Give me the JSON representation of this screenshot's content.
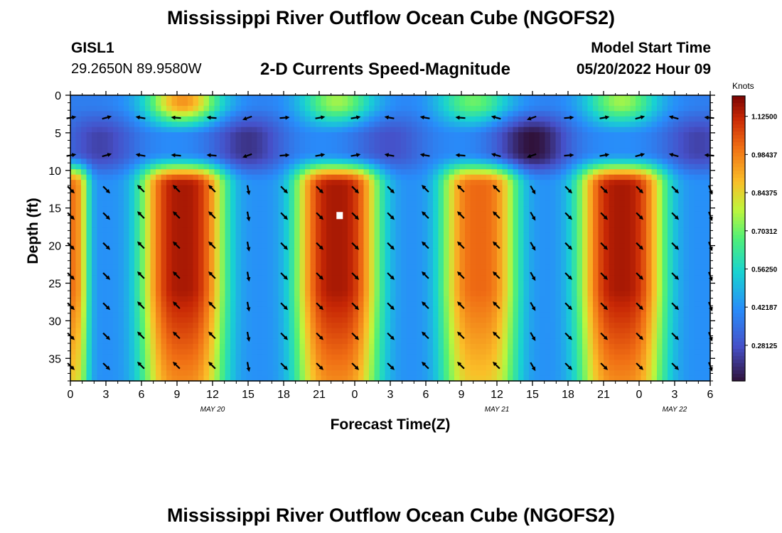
{
  "page": {
    "title": "Mississippi River Outflow Ocean Cube (NGOFS2)",
    "station_id": "GISL1",
    "station_coords": "29.2650N  89.9580W",
    "subtitle": "2-D Currents Speed-Magnitude",
    "model_start_label": "Model Start Time",
    "model_start_value": "05/20/2022 Hour 09",
    "bottom_title": "Mississippi River Outflow Ocean Cube (NGOFS2)"
  },
  "chart_data": {
    "type": "heatmap",
    "title": "2-D Currents Speed-Magnitude",
    "xlabel": "Forecast Time(Z)",
    "ylabel": "Depth (ft)",
    "x_hours_range": [
      0,
      54
    ],
    "x_tick_hours": [
      0,
      3,
      6,
      9,
      12,
      15,
      18,
      21,
      24,
      27,
      30,
      33,
      36,
      39,
      42,
      45,
      48,
      51,
      54
    ],
    "x_tick_labels": [
      "0",
      "3",
      "6",
      "9",
      "12",
      "15",
      "18",
      "21",
      "0",
      "3",
      "6",
      "9",
      "12",
      "15",
      "18",
      "21",
      "0",
      "3",
      "6"
    ],
    "date_labels": [
      {
        "text": "MAY 20",
        "hour": 12
      },
      {
        "text": "MAY 21",
        "hour": 36
      },
      {
        "text": "MAY 22",
        "hour": 51
      }
    ],
    "ylim": [
      0,
      38
    ],
    "y_ticks": [
      0,
      5,
      10,
      15,
      20,
      25,
      30,
      35
    ],
    "y_tick_labels": [
      "0",
      "5",
      "10",
      "15",
      "20",
      "25",
      "30",
      "35"
    ],
    "colorbar": {
      "label": "Knots",
      "range": [
        0.15,
        1.2
      ],
      "ticks": [
        1.125,
        0.984375,
        0.84375,
        0.703125,
        0.5625,
        0.421875,
        0.28125
      ],
      "tick_labels": [
        "1.12500",
        "0.98437",
        "0.84375",
        "0.70312",
        "0.56250",
        "0.42187",
        "0.28125"
      ]
    },
    "deep_speed_peaks": [
      {
        "hour": 0,
        "speed": 1.0,
        "width": 1.5
      },
      {
        "hour": 9.5,
        "speed": 1.15,
        "width": 3.5
      },
      {
        "hour": 22.5,
        "speed": 1.15,
        "width": 3.5
      },
      {
        "hour": 34.5,
        "speed": 1.02,
        "width": 3.2
      },
      {
        "hour": 46.5,
        "speed": 1.15,
        "width": 3.6
      }
    ],
    "surface_speed_peaks": [
      {
        "hour": 9.5,
        "speed": 0.95,
        "width": 2.2
      },
      {
        "hour": 22.5,
        "speed": 0.75,
        "width": 2.2
      },
      {
        "hour": 34,
        "speed": 0.7,
        "width": 2.2
      },
      {
        "hour": 46.5,
        "speed": 0.75,
        "width": 2.2
      }
    ],
    "mid_layer_speed_troughs": [
      {
        "hour": 2.5,
        "speed": 0.25
      },
      {
        "hour": 15,
        "speed": 0.22
      },
      {
        "hour": 27,
        "speed": 0.28
      },
      {
        "hour": 39,
        "speed": 0.15
      },
      {
        "hour": 53,
        "speed": 0.25
      }
    ],
    "vector_rows_depth_ft": [
      3,
      8,
      12.5,
      16,
      20,
      24,
      28,
      32,
      36
    ],
    "vector_column_hours": [
      0,
      3,
      6,
      9,
      12,
      15,
      18,
      21,
      24,
      27,
      30,
      33,
      36,
      39,
      42,
      45,
      48,
      51,
      54
    ],
    "vector_dir_deg_upper_layer": [
      10,
      15,
      170,
      175,
      175,
      200,
      5,
      10,
      10,
      170,
      170,
      175,
      165,
      200,
      5,
      10,
      15,
      165,
      175
    ],
    "vector_dir_deg_lower_layer": [
      -45,
      -45,
      135,
      135,
      135,
      -80,
      -45,
      -45,
      -45,
      -45,
      135,
      135,
      135,
      -60,
      -45,
      -45,
      -45,
      -45,
      -70
    ],
    "marker_label": "white square marker",
    "marker_hour": 22.7,
    "marker_depth_ft": 16
  }
}
